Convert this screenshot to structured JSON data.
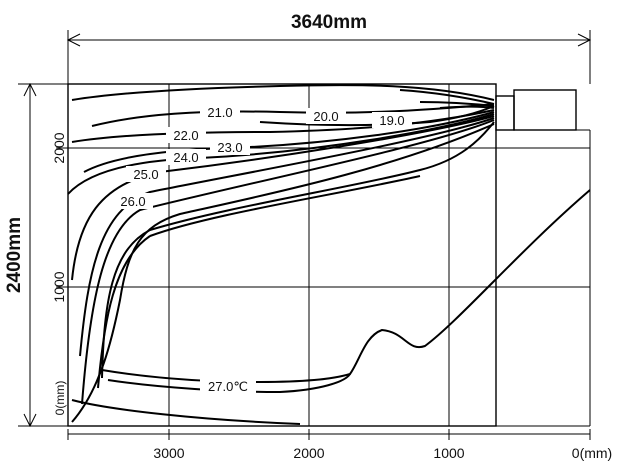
{
  "dimensions": {
    "width_label": "3640mm",
    "height_label": "2400mm"
  },
  "x_axis": {
    "ticks": [
      "3000",
      "2000",
      "1000",
      "0(mm)"
    ]
  },
  "y_axis": {
    "ticks": [
      "2000",
      "1000",
      "0(mm)"
    ]
  },
  "contours": [
    {
      "value": 19.0,
      "label": "19.0"
    },
    {
      "value": 20.0,
      "label": "20.0"
    },
    {
      "value": 21.0,
      "label": "21.0"
    },
    {
      "value": 22.0,
      "label": "22.0"
    },
    {
      "value": 23.0,
      "label": "23.0"
    },
    {
      "value": 24.0,
      "label": "24.0"
    },
    {
      "value": 25.0,
      "label": "25.0"
    },
    {
      "value": 26.0,
      "label": "26.0"
    },
    {
      "value": 27.0,
      "label": "27.0℃"
    }
  ]
}
